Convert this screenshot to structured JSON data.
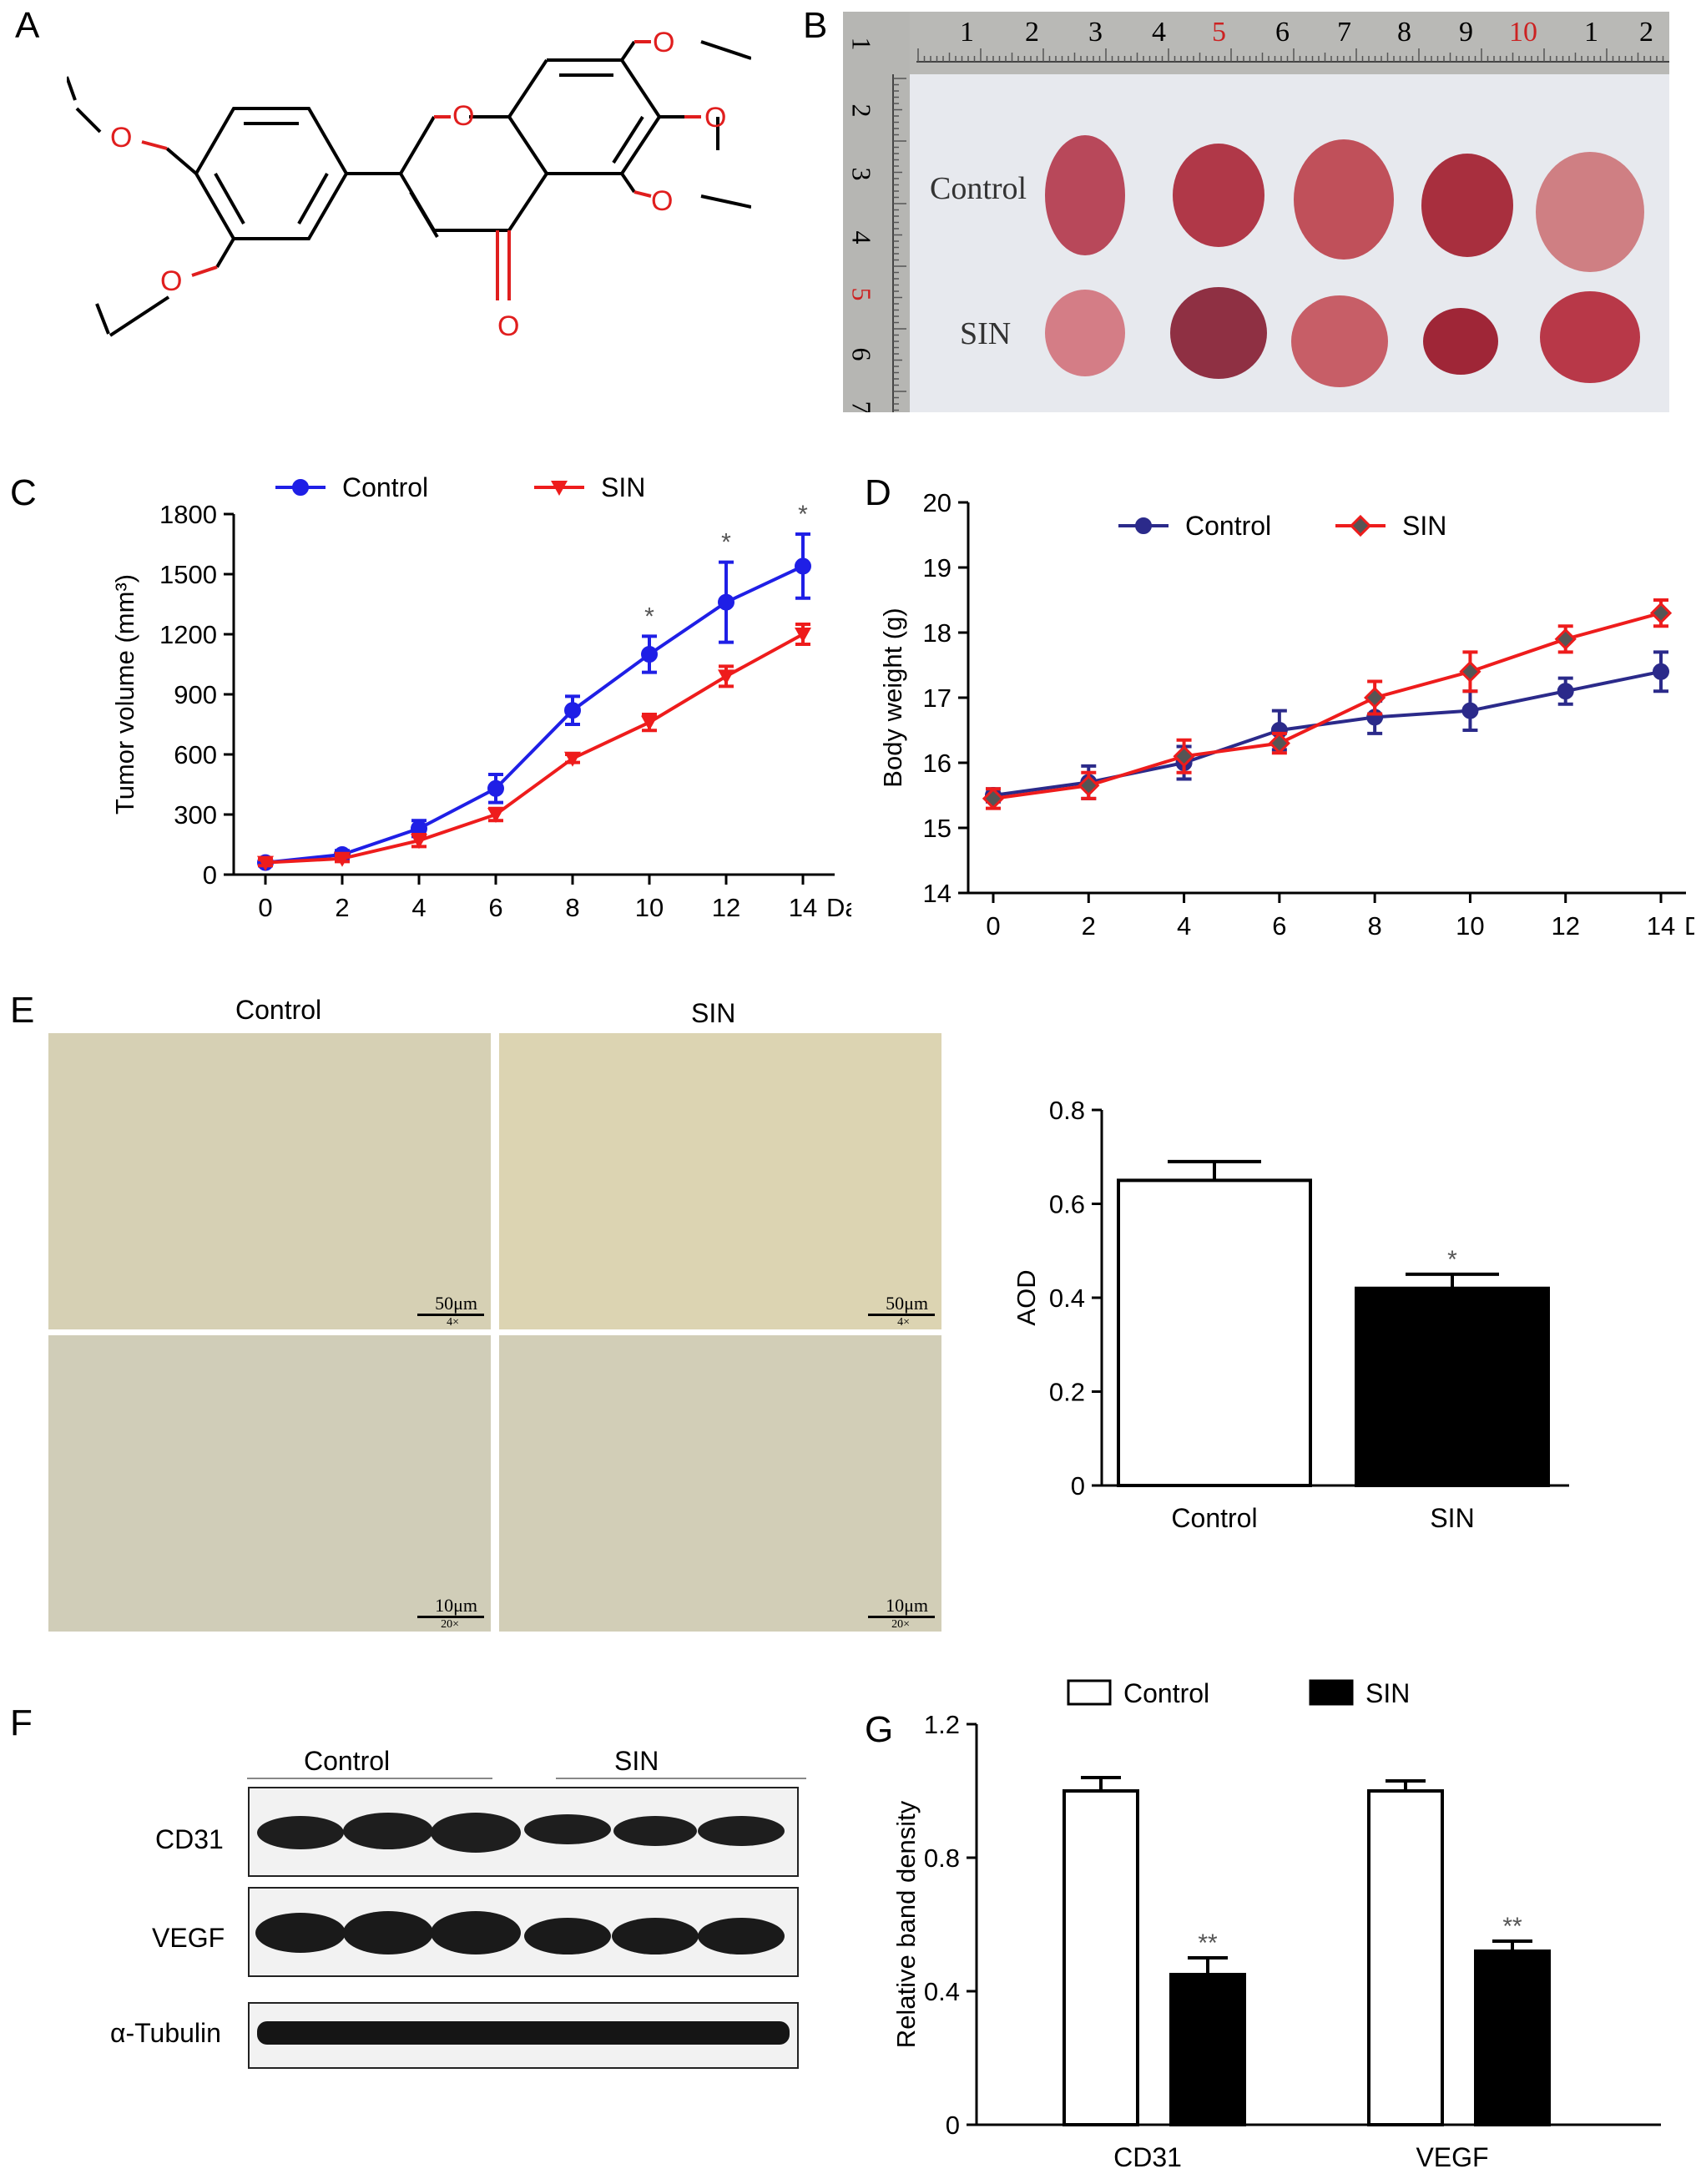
{
  "panels": {
    "A": "A",
    "B": "B",
    "C": "C",
    "D": "D",
    "E": "E",
    "F": "F",
    "G": "G"
  },
  "photo_b": {
    "row_labels": [
      "Control",
      "SIN"
    ],
    "ruler_numbers_top": [
      "1",
      "2",
      "3",
      "4",
      "5",
      "6",
      "7",
      "8",
      "9",
      "10",
      "1",
      "2"
    ],
    "ruler_numbers_left": [
      "2",
      "3",
      "4",
      "5",
      "6",
      "7"
    ],
    "ruler_small_left": "1"
  },
  "panel_e": {
    "col_labels": [
      "Control",
      "SIN"
    ],
    "scale_top": "50μm",
    "mag_top": "4×",
    "scale_bottom": "10μm",
    "mag_bottom": "20×"
  },
  "western": {
    "group_labels": [
      "Control",
      "SIN"
    ],
    "row_labels": [
      "CD31",
      "VEGF",
      "α-Tubulin"
    ]
  },
  "chart_data": [
    {
      "id": "C",
      "type": "line",
      "ylabel": "Tumor volume (mm³)",
      "xlabel": "Days",
      "x": [
        0,
        2,
        4,
        6,
        8,
        10,
        12,
        14
      ],
      "ylim": [
        0,
        1800
      ],
      "yticks": [
        0,
        300,
        600,
        900,
        1200,
        1500,
        1800
      ],
      "series": [
        {
          "name": "Control",
          "color": "#1f1fe6",
          "marker": "circle",
          "values": [
            60,
            100,
            230,
            430,
            820,
            1100,
            1360,
            1540
          ],
          "errors": [
            15,
            20,
            40,
            70,
            70,
            90,
            200,
            160
          ]
        },
        {
          "name": "SIN",
          "color": "#ee1c1c",
          "marker": "triangle-down",
          "values": [
            60,
            80,
            170,
            300,
            580,
            760,
            990,
            1200
          ],
          "errors": [
            15,
            15,
            30,
            30,
            20,
            40,
            50,
            50
          ]
        }
      ],
      "annotations": [
        {
          "x": 10,
          "text": "*"
        },
        {
          "x": 12,
          "text": "*"
        },
        {
          "x": 14,
          "text": "*"
        }
      ]
    },
    {
      "id": "D",
      "type": "line",
      "ylabel": "Body weight (g)",
      "xlabel": "Days",
      "x": [
        0,
        2,
        4,
        6,
        8,
        10,
        12,
        14
      ],
      "ylim": [
        14,
        20
      ],
      "yticks": [
        14,
        15,
        16,
        17,
        18,
        19,
        20
      ],
      "series": [
        {
          "name": "Control",
          "color": "#2b2a8a",
          "marker": "circle",
          "values": [
            15.5,
            15.7,
            16.0,
            16.5,
            16.7,
            16.8,
            17.1,
            17.4
          ],
          "errors": [
            0.1,
            0.25,
            0.25,
            0.3,
            0.25,
            0.3,
            0.2,
            0.3
          ]
        },
        {
          "name": "SIN",
          "color": "#ee1c1c",
          "marker": "diamond",
          "values": [
            15.45,
            15.65,
            16.1,
            16.3,
            17.0,
            17.4,
            17.9,
            18.3
          ],
          "errors": [
            0.15,
            0.2,
            0.25,
            0.15,
            0.25,
            0.3,
            0.2,
            0.2
          ]
        }
      ]
    },
    {
      "id": "E",
      "type": "bar",
      "ylabel": "AOD",
      "categories": [
        "Control",
        "SIN"
      ],
      "values": [
        0.65,
        0.42
      ],
      "errors": [
        0.04,
        0.03
      ],
      "fills": [
        "#ffffff",
        "#000000"
      ],
      "ylim": [
        0,
        0.8
      ],
      "yticks": [
        0,
        0.2,
        0.4,
        0.6,
        0.8
      ],
      "annotations": [
        {
          "category": "SIN",
          "text": "*"
        }
      ]
    },
    {
      "id": "G",
      "type": "bar",
      "ylabel": "Relative band density",
      "categories": [
        "CD31",
        "VEGF"
      ],
      "series": [
        {
          "name": "Control",
          "fill": "#ffffff",
          "values": [
            1.0,
            1.0
          ],
          "errors": [
            0.04,
            0.03
          ]
        },
        {
          "name": "SIN",
          "fill": "#000000",
          "values": [
            0.45,
            0.52
          ],
          "errors": [
            0.05,
            0.03
          ]
        }
      ],
      "ylim": [
        0,
        1.2
      ],
      "yticks": [
        0,
        0.4,
        0.8,
        1.2
      ],
      "annotations": [
        {
          "category": "CD31",
          "series": "SIN",
          "text": "**"
        },
        {
          "category": "VEGF",
          "series": "SIN",
          "text": "**"
        }
      ]
    }
  ]
}
